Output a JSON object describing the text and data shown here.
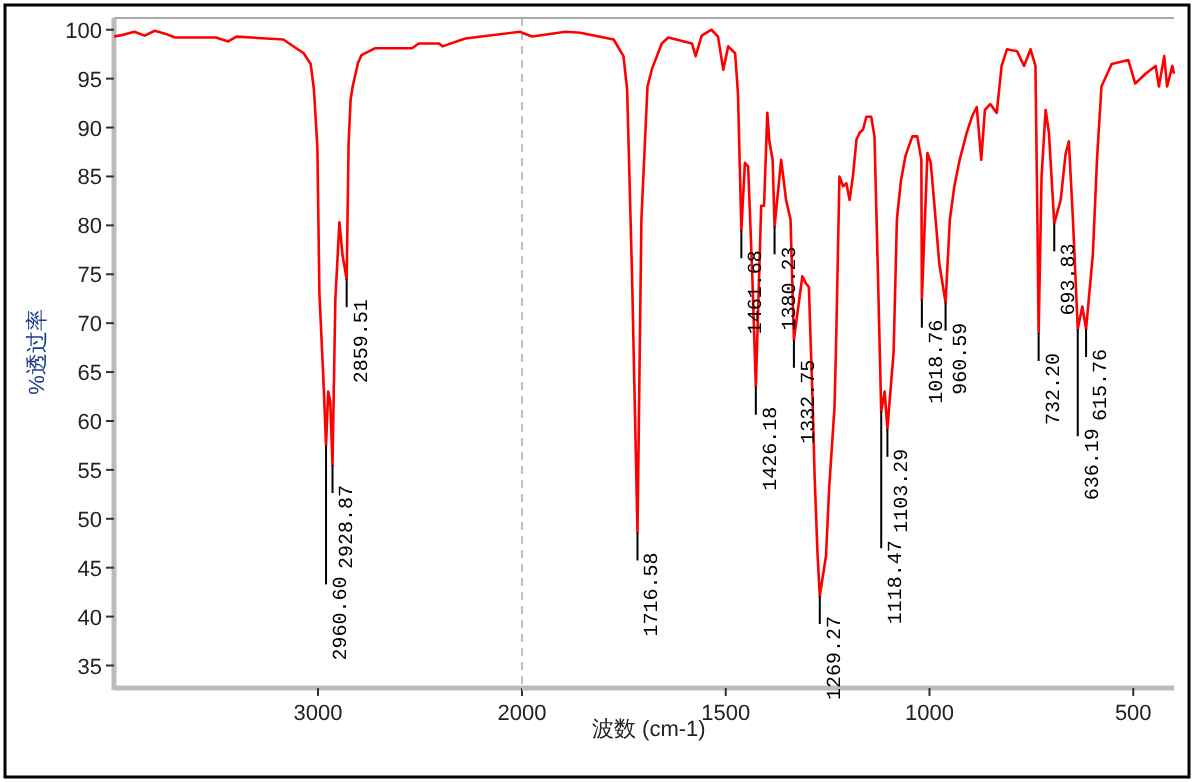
{
  "chart_data": [
    {
      "type": "line",
      "ylabel": "%透过率",
      "color": "#ff0000",
      "xlim": [
        4000,
        2000
      ],
      "ylim": [
        32.7,
        101.2
      ],
      "xticks": [
        3000,
        2000
      ],
      "yticks": [
        35,
        40,
        45,
        50,
        55,
        60,
        65,
        70,
        75,
        80,
        85,
        90,
        95,
        100
      ],
      "ref_lines": [
        {
          "axis": "x",
          "value": 2000,
          "color": "#c0c0c0",
          "line_style": "dashed"
        }
      ],
      "x": [
        4000,
        3950,
        3900,
        3850,
        3800,
        3750,
        3700,
        3500,
        3440,
        3400,
        3170,
        3070,
        3036,
        3020,
        3003,
        2993,
        2975,
        2960.6,
        2950,
        2940,
        2928.87,
        2915,
        2895,
        2880,
        2859.51,
        2850,
        2840,
        2830,
        2804,
        2787,
        2722,
        2539,
        2506,
        2407,
        2390,
        2278,
        2010,
        2000
      ],
      "values": [
        99.3,
        99.5,
        99.8,
        99.4,
        99.9,
        99.6,
        99.2,
        99.2,
        98.8,
        99.3,
        99.0,
        97.6,
        96.5,
        93.9,
        88.0,
        73.0,
        65,
        57.5,
        63,
        62,
        55.5,
        72.4,
        80.3,
        77,
        74.5,
        88.4,
        92.9,
        94.2,
        96.6,
        97.4,
        98.1,
        98.1,
        98.6,
        98.6,
        98.3,
        99.1,
        99.8,
        99.7
      ],
      "annotations": [
        {
          "text": "2960.60",
          "x": 2960.6,
          "y": 57.5
        },
        {
          "text": "2928.87",
          "x": 2928.87,
          "y": 55.5
        },
        {
          "text": "2859.51",
          "x": 2859.51,
          "y": 74.5
        }
      ]
    },
    {
      "type": "line",
      "xlabel": "波数 (cm-1)",
      "color": "#ff0000",
      "tick_labels": "x",
      "xlim": [
        2000,
        400
      ],
      "ylim": [
        32.7,
        101.2
      ],
      "xticks": [
        1500,
        1000,
        500
      ],
      "x": [
        2000,
        1975,
        1893,
        1857,
        1775,
        1751,
        1742,
        1730,
        1716.58,
        1707,
        1692,
        1681,
        1657,
        1641,
        1583,
        1574,
        1559,
        1535,
        1519,
        1506,
        1494,
        1477,
        1470,
        1461.68,
        1453,
        1445,
        1435,
        1426.18,
        1413,
        1406,
        1398,
        1393,
        1385,
        1380.23,
        1364,
        1352,
        1341,
        1332.75,
        1312,
        1304,
        1296,
        1287,
        1282,
        1275,
        1269.27,
        1254,
        1246,
        1233,
        1229,
        1221,
        1212,
        1204,
        1196,
        1188,
        1179,
        1171,
        1163,
        1155,
        1143,
        1135,
        1127,
        1118.47,
        1110,
        1103.29,
        1088,
        1080,
        1070,
        1059,
        1042,
        1030,
        1020,
        1018.76,
        1005,
        997,
        989,
        976,
        960.59,
        950,
        939,
        926,
        909,
        896,
        884,
        873,
        864,
        851,
        835,
        823,
        810,
        785,
        768,
        752,
        740,
        735,
        732.2,
        725,
        715,
        707,
        693.83,
        678,
        666,
        658,
        648,
        636.19,
        625,
        615.76,
        599,
        589,
        578,
        553,
        512,
        495,
        470,
        445,
        437,
        424,
        417,
        404,
        400
      ],
      "values": [
        99.7,
        99.3,
        99.8,
        99.7,
        99.0,
        97.3,
        93.9,
        75,
        48.6,
        80.6,
        94.2,
        96.0,
        98.6,
        99.2,
        98.6,
        97.3,
        99.4,
        100.0,
        99.3,
        95.9,
        98.3,
        97.6,
        93.5,
        79.5,
        86.4,
        86.0,
        75,
        63.5,
        82,
        82,
        91.5,
        88.6,
        86.7,
        79.9,
        86.7,
        82.6,
        80.6,
        68.3,
        74.8,
        74.1,
        73.7,
        62.2,
        54.5,
        46.6,
        42.1,
        46.2,
        53.3,
        61.5,
        68.3,
        85,
        84,
        84.3,
        82.6,
        85,
        88.8,
        89.5,
        89.8,
        91.1,
        91.1,
        89.1,
        75.8,
        61,
        63,
        59.2,
        67.1,
        80.6,
        84.6,
        87.1,
        89.1,
        89.1,
        86.7,
        72.4,
        87.4,
        86.4,
        82.6,
        76.1,
        72.1,
        80.6,
        84,
        86.7,
        89.4,
        91.1,
        92.1,
        86.7,
        91.8,
        92.4,
        91.5,
        96.3,
        98,
        97.8,
        96.3,
        98,
        96.3,
        80,
        69,
        85,
        91.8,
        89.5,
        80.2,
        82.6,
        87.3,
        88.6,
        80.6,
        69.4,
        71.7,
        69.4,
        77.1,
        86.7,
        94.2,
        96.5,
        96.9,
        94.5,
        95.5,
        96.3,
        94.2,
        97.3,
        94.2,
        96.3,
        95.5
      ],
      "annotations": [
        {
          "text": "1716.58",
          "x": 1716.58,
          "y": 48.6
        },
        {
          "text": "1461.68",
          "x": 1461.68,
          "y": 79.5
        },
        {
          "text": "1426.18",
          "x": 1426.18,
          "y": 63.5
        },
        {
          "text": "1380.23",
          "x": 1380.23,
          "y": 79.9
        },
        {
          "text": "1332.75",
          "x": 1332.75,
          "y": 68.3
        },
        {
          "text": "1269.27",
          "x": 1269.27,
          "y": 42.1
        },
        {
          "text": "1118.47",
          "x": 1118.47,
          "y": 61
        },
        {
          "text": "1103.29",
          "x": 1103.29,
          "y": 59.2
        },
        {
          "text": "1018.76",
          "x": 1018.76,
          "y": 72.4
        },
        {
          "text": "960.59",
          "x": 960.59,
          "y": 72.1
        },
        {
          "text": "732.20",
          "x": 732.2,
          "y": 69
        },
        {
          "text": "693.83",
          "x": 693.83,
          "y": 80.2
        },
        {
          "text": "636.19",
          "x": 636.19,
          "y": 69.4
        },
        {
          "text": "615.76",
          "x": 615.76,
          "y": 69.4
        }
      ]
    }
  ]
}
